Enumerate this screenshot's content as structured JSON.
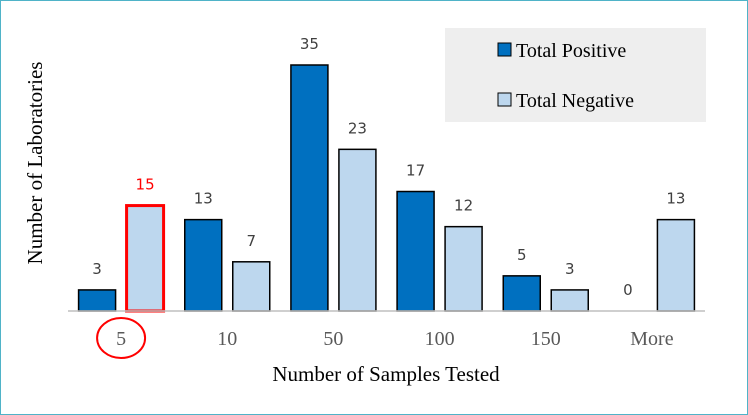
{
  "chart_data": {
    "type": "bar",
    "title": "",
    "xlabel": "Number of Samples Tested",
    "ylabel": "Number of Laboratories",
    "categories": [
      "5",
      "10",
      "50",
      "100",
      "150",
      "More"
    ],
    "series": [
      {
        "name": "Total Positive",
        "values": [
          3,
          13,
          35,
          17,
          5,
          0
        ],
        "color": "#0070c0"
      },
      {
        "name": "Total Negative",
        "values": [
          15,
          7,
          23,
          12,
          3,
          13
        ],
        "color": "#bdd7ee"
      }
    ],
    "ylim": [
      0,
      35
    ],
    "grid": false,
    "legend_position": "top-right",
    "highlight": {
      "series_index": 1,
      "category_index": 0,
      "color": "#ff0000",
      "circled_category_index": 0
    }
  }
}
